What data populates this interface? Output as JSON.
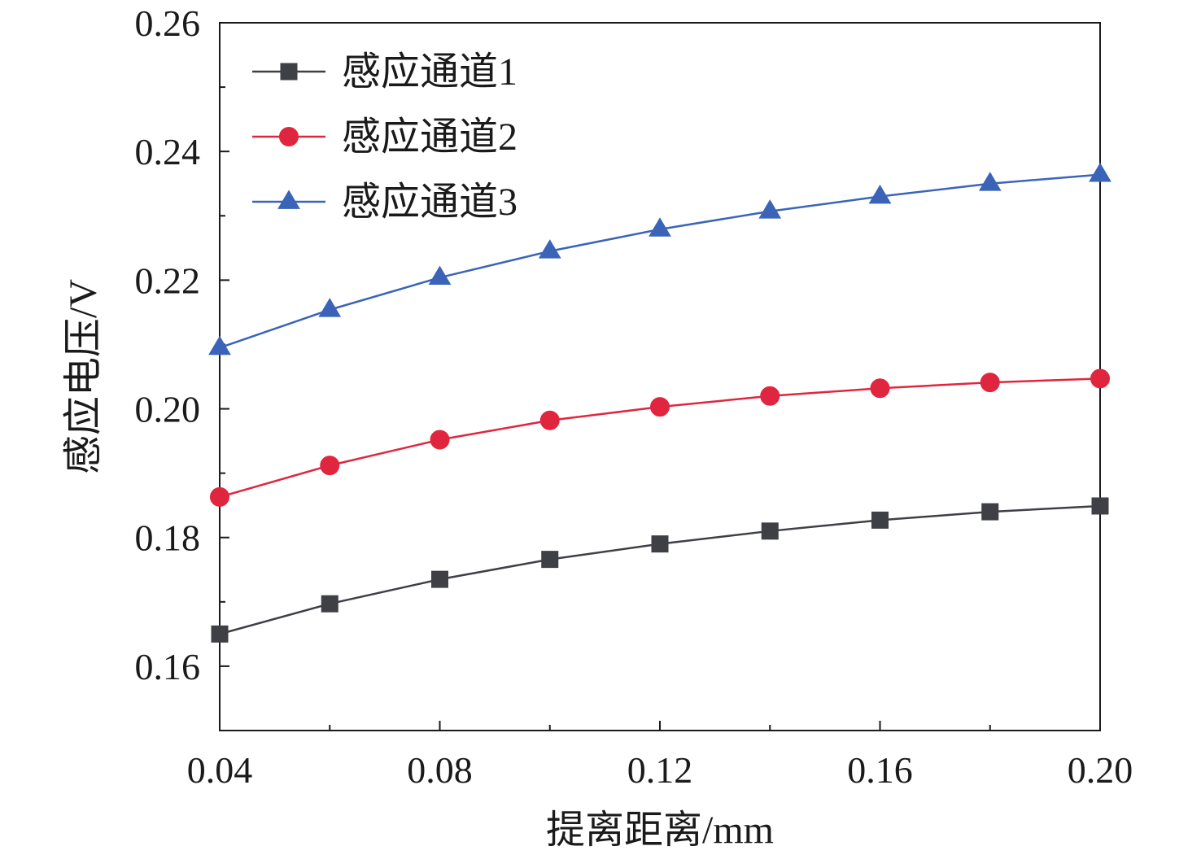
{
  "chart_data": {
    "type": "line",
    "xlabel": "提离距离/mm",
    "ylabel": "感应电压/V",
    "xlim": [
      0.04,
      0.2
    ],
    "ylim": [
      0.15,
      0.26
    ],
    "x_ticks": [
      0.04,
      0.08,
      0.12,
      0.16,
      0.2
    ],
    "x_tick_labels": [
      "0.04",
      "0.08",
      "0.12",
      "0.16",
      "0.20"
    ],
    "y_ticks": [
      0.16,
      0.18,
      0.2,
      0.22,
      0.24,
      0.26
    ],
    "y_tick_labels": [
      "0.16",
      "0.18",
      "0.20",
      "0.22",
      "0.24",
      "0.26"
    ],
    "grid": false,
    "legend_position": "top-left",
    "x": [
      0.04,
      0.06,
      0.08,
      0.1,
      0.12,
      0.14,
      0.16,
      0.18,
      0.2
    ],
    "series": [
      {
        "name": "感应通道1",
        "color": "#3f3f46",
        "marker": "square",
        "values": [
          0.165,
          0.1697,
          0.1735,
          0.1766,
          0.179,
          0.181,
          0.1827,
          0.184,
          0.1849
        ]
      },
      {
        "name": "感应通道2",
        "color": "#e0263f",
        "marker": "circle",
        "values": [
          0.1863,
          0.1912,
          0.1952,
          0.1982,
          0.2003,
          0.202,
          0.2032,
          0.2041,
          0.2047
        ]
      },
      {
        "name": "感应通道3",
        "color": "#3b64b8",
        "marker": "triangle",
        "values": [
          0.2095,
          0.2154,
          0.2204,
          0.2245,
          0.2279,
          0.2307,
          0.233,
          0.235,
          0.2364
        ]
      }
    ]
  }
}
